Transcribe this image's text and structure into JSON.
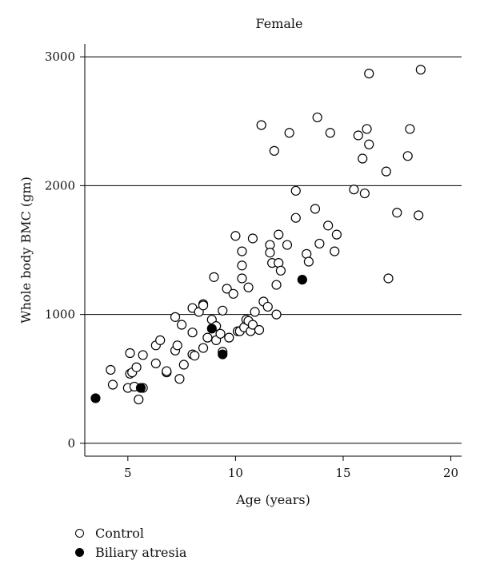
{
  "chart_data": {
    "type": "scatter",
    "title": "Female",
    "xlabel": "Age (years)",
    "ylabel": "Whole body BMC (gm)",
    "xlim": [
      3,
      20.5
    ],
    "ylim": [
      -100,
      3100
    ],
    "xticks": [
      5,
      10,
      15,
      20
    ],
    "yticks": [
      0,
      1000,
      2000,
      3000
    ],
    "grid": "horizontal",
    "legend_position": "bottom-left",
    "series": [
      {
        "name": "Control",
        "marker": "open-circle",
        "points": [
          [
            4.2,
            570
          ],
          [
            4.3,
            455
          ],
          [
            5.0,
            430
          ],
          [
            5.1,
            540
          ],
          [
            5.1,
            700
          ],
          [
            5.2,
            550
          ],
          [
            5.3,
            440
          ],
          [
            5.4,
            590
          ],
          [
            5.5,
            340
          ],
          [
            5.7,
            430
          ],
          [
            5.7,
            685
          ],
          [
            6.3,
            620
          ],
          [
            6.3,
            760
          ],
          [
            6.5,
            800
          ],
          [
            6.8,
            550
          ],
          [
            6.8,
            560
          ],
          [
            7.2,
            980
          ],
          [
            7.2,
            720
          ],
          [
            7.3,
            760
          ],
          [
            7.4,
            500
          ],
          [
            7.5,
            920
          ],
          [
            7.6,
            610
          ],
          [
            8.0,
            1050
          ],
          [
            8.0,
            860
          ],
          [
            8.0,
            690
          ],
          [
            8.1,
            680
          ],
          [
            8.3,
            1020
          ],
          [
            8.5,
            1080
          ],
          [
            8.5,
            1070
          ],
          [
            8.5,
            740
          ],
          [
            8.7,
            820
          ],
          [
            8.9,
            960
          ],
          [
            9.0,
            1290
          ],
          [
            9.1,
            800
          ],
          [
            9.1,
            910
          ],
          [
            9.3,
            850
          ],
          [
            9.4,
            1030
          ],
          [
            9.4,
            710
          ],
          [
            9.6,
            1200
          ],
          [
            9.7,
            820
          ],
          [
            9.9,
            1160
          ],
          [
            10.0,
            1610
          ],
          [
            10.1,
            870
          ],
          [
            10.2,
            870
          ],
          [
            10.3,
            1280
          ],
          [
            10.3,
            1490
          ],
          [
            10.3,
            1380
          ],
          [
            10.4,
            900
          ],
          [
            10.5,
            960
          ],
          [
            10.6,
            950
          ],
          [
            10.6,
            1210
          ],
          [
            10.7,
            870
          ],
          [
            10.8,
            1590
          ],
          [
            10.8,
            920
          ],
          [
            10.9,
            1020
          ],
          [
            11.1,
            880
          ],
          [
            11.2,
            2470
          ],
          [
            11.3,
            1100
          ],
          [
            11.5,
            1060
          ],
          [
            11.6,
            1540
          ],
          [
            11.6,
            1480
          ],
          [
            11.7,
            1400
          ],
          [
            11.8,
            2270
          ],
          [
            11.9,
            1230
          ],
          [
            11.9,
            1000
          ],
          [
            12.0,
            1620
          ],
          [
            12.0,
            1400
          ],
          [
            12.1,
            1340
          ],
          [
            12.4,
            1540
          ],
          [
            12.5,
            2410
          ],
          [
            12.8,
            1750
          ],
          [
            12.8,
            1960
          ],
          [
            13.3,
            1470
          ],
          [
            13.4,
            1410
          ],
          [
            13.7,
            1820
          ],
          [
            13.8,
            2530
          ],
          [
            13.9,
            1550
          ],
          [
            14.3,
            1690
          ],
          [
            14.4,
            2410
          ],
          [
            14.6,
            1490
          ],
          [
            14.7,
            1620
          ],
          [
            15.5,
            1970
          ],
          [
            15.7,
            2390
          ],
          [
            15.9,
            2210
          ],
          [
            16.0,
            1940
          ],
          [
            16.1,
            2440
          ],
          [
            16.2,
            2320
          ],
          [
            16.2,
            2870
          ],
          [
            17.0,
            2110
          ],
          [
            17.1,
            1280
          ],
          [
            17.5,
            1790
          ],
          [
            18.0,
            2230
          ],
          [
            18.1,
            2440
          ],
          [
            18.5,
            1770
          ],
          [
            18.6,
            2900
          ]
        ]
      },
      {
        "name": "Biliary atresia",
        "marker": "filled-circle",
        "points": [
          [
            3.5,
            350
          ],
          [
            5.6,
            430
          ],
          [
            8.9,
            890
          ],
          [
            9.4,
            690
          ],
          [
            13.1,
            1270
          ]
        ]
      }
    ]
  }
}
